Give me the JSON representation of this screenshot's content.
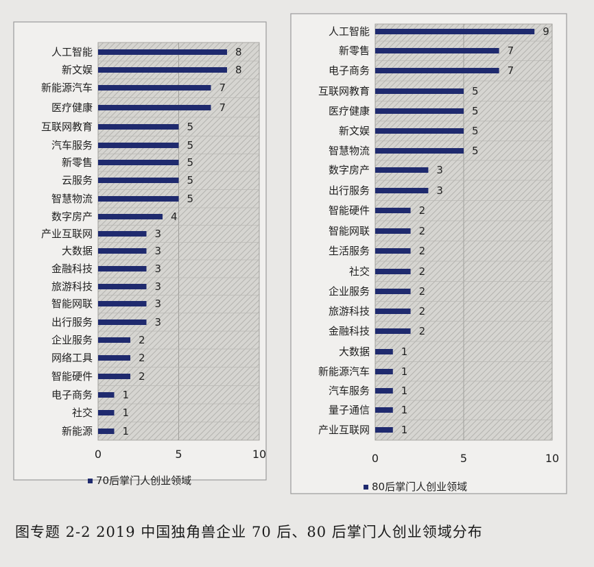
{
  "colors": {
    "bar": "#1f2a6e",
    "panel_bg": "#f1f0ee",
    "plot_bg": "#c9c8c4",
    "border": "#9a9a9a"
  },
  "chart_data": [
    {
      "type": "bar",
      "orientation": "horizontal",
      "categories": [
        "人工智能",
        "新文娱",
        "新能源汽车",
        "医疗健康",
        "互联网教育",
        "汽车服务",
        "新零售",
        "云服务",
        "智慧物流",
        "数字房产",
        "产业互联网",
        "大数据",
        "金融科技",
        "旅游科技",
        "智能网联",
        "出行服务",
        "企业服务",
        "网络工具",
        "智能硬件",
        "电子商务",
        "社交",
        "新能源"
      ],
      "series": [
        {
          "name": "70后掌门人创业领域",
          "values": [
            8,
            8,
            7,
            7,
            5,
            5,
            5,
            5,
            5,
            4,
            3,
            3,
            3,
            3,
            3,
            3,
            2,
            2,
            2,
            1,
            1,
            1
          ]
        }
      ],
      "xlim": [
        0,
        10
      ],
      "xticks": [
        "0",
        "5",
        "10"
      ],
      "grid": true,
      "legend": "bottom"
    },
    {
      "type": "bar",
      "orientation": "horizontal",
      "categories": [
        "人工智能",
        "新零售",
        "电子商务",
        "互联网教育",
        "医疗健康",
        "新文娱",
        "智慧物流",
        "数字房产",
        "出行服务",
        "智能硬件",
        "智能网联",
        "生活服务",
        "社交",
        "企业服务",
        "旅游科技",
        "金融科技",
        "大数据",
        "新能源汽车",
        "汽车服务",
        "量子通信",
        "产业互联网"
      ],
      "series": [
        {
          "name": "80后掌门人创业领域",
          "values": [
            9,
            7,
            7,
            5,
            5,
            5,
            5,
            3,
            3,
            2,
            2,
            2,
            2,
            2,
            2,
            2,
            1,
            1,
            1,
            1,
            1
          ]
        }
      ],
      "xlim": [
        0,
        10
      ],
      "xticks": [
        "0",
        "5",
        "10"
      ],
      "grid": true,
      "legend": "bottom"
    }
  ],
  "caption": "图专题 2-2 2019 中国独角兽企业 70 后、80 后掌门人创业领域分布"
}
